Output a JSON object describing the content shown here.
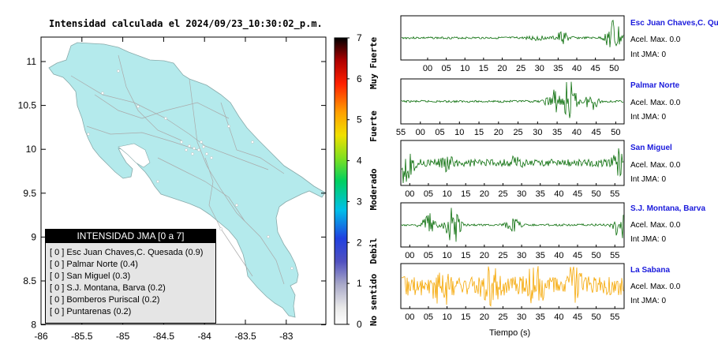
{
  "map": {
    "title": "Intensidad calculada el 2024/09/23_10:30:02_p.m.",
    "x_ticks": [
      "-86",
      "-85.5",
      "-85",
      "-84.5",
      "-84",
      "-83.5",
      "-83"
    ],
    "y_ticks": [
      "11",
      "10.5",
      "10",
      "9.5",
      "9",
      "8.5",
      "8"
    ],
    "land_color": "#b4eaec"
  },
  "scale": {
    "ticks": [
      "7",
      "6",
      "5",
      "4",
      "3",
      "2",
      "1",
      "0"
    ],
    "labels": [
      "Muy Fuerte",
      "Fuerte",
      "Moderado",
      "Debil",
      "No sentido"
    ]
  },
  "legend": {
    "title": "INTENSIDAD JMA [0 a 7]",
    "items": [
      "[ 0 ]  Esc Juan Chaves,C. Quesada (0.9)",
      "[ 0 ]  Palmar Norte (0.4)",
      "[ 0 ]  San Miguel (0.3)",
      "[ 0 ]  S.J. Montana, Barva (0.2)",
      "[ 0 ]  Bomberos Puriscal (0.2)",
      "[ 0 ]  Puntarenas (0.2)"
    ]
  },
  "stations": [
    {
      "name": "Esc Juan Chaves,C. Qu",
      "accel": "Acel. Max. 0.0",
      "int": "Int JMA: 0",
      "ticks": [
        "00",
        "05",
        "10",
        "15",
        "20",
        "25",
        "30",
        "35",
        "40",
        "45",
        "50"
      ],
      "color": "#0a6e0a"
    },
    {
      "name": "Palmar Norte",
      "accel": "Acel. Max. 0.0",
      "int": "Int JMA: 0",
      "ticks": [
        "55",
        "00",
        "05",
        "10",
        "15",
        "20",
        "25",
        "30",
        "35",
        "40",
        "45",
        "50"
      ],
      "color": "#0a6e0a"
    },
    {
      "name": "San Miguel",
      "accel": "Acel. Max. 0.0",
      "int": "Int JMA: 0",
      "ticks": [
        "00",
        "05",
        "10",
        "15",
        "20",
        "25",
        "30",
        "35",
        "40",
        "45",
        "50",
        "55"
      ],
      "color": "#0a6e0a"
    },
    {
      "name": "S.J. Montana, Barva",
      "accel": "Acel. Max. 0.0",
      "int": "Int JMA: 0",
      "ticks": [
        "00",
        "05",
        "10",
        "15",
        "20",
        "25",
        "30",
        "35",
        "40",
        "45",
        "50",
        "55"
      ],
      "color": "#0a6e0a"
    },
    {
      "name": "La Sabana",
      "accel": "Acel. Max. 0.0",
      "int": "Int JMA: 0",
      "ticks": [
        "00",
        "05",
        "10",
        "15",
        "20",
        "25",
        "30",
        "35",
        "40",
        "45",
        "50",
        "55"
      ],
      "color": "#f5a600"
    }
  ],
  "time_axis_label": "Tiempo (s)"
}
